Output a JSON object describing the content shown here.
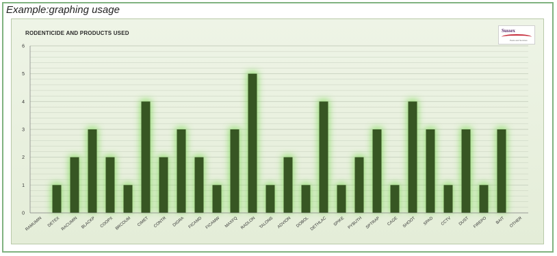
{
  "caption": "Example:graphing usage",
  "logo": {
    "name": "Sussex",
    "subtitle": "Pests and Services"
  },
  "colors": {
    "bar": "#375623",
    "glow": "#7ed957",
    "grid": "#c6cfbd",
    "panel": "#e9f0e0",
    "frame": "#7fb27f"
  },
  "chart_data": {
    "type": "bar",
    "title": "RODENTICIDE AND PRODUCTS USED",
    "xlabel": "",
    "ylabel": "",
    "ylim": [
      0,
      6
    ],
    "yticks": [
      0,
      1,
      2,
      3,
      4,
      5,
      6
    ],
    "grid": true,
    "categories": [
      "RAMUMIN",
      "DETEX",
      "RACUMIN",
      "BLACKP",
      "COOPX",
      "BRCOUM",
      "CIMET",
      "CONTR",
      "DIGRA",
      "FICAMD",
      "FICAMW",
      "MAXFQ",
      "RADLON",
      "TALONS",
      "ADVION",
      "DOBOL",
      "DETHLAC",
      "SPIKE",
      "PYBUTH",
      "SPTRAP",
      "CAGE",
      "SHOOT",
      "SPAD",
      "CCTV",
      "DUST",
      "FIREPO",
      "BAIT",
      "OTHER"
    ],
    "values": [
      0,
      1,
      2,
      3,
      2,
      1,
      4,
      2,
      3,
      2,
      1,
      3,
      5,
      1,
      2,
      1,
      4,
      1,
      2,
      3,
      1,
      4,
      3,
      1,
      3,
      1,
      3,
      0
    ]
  }
}
